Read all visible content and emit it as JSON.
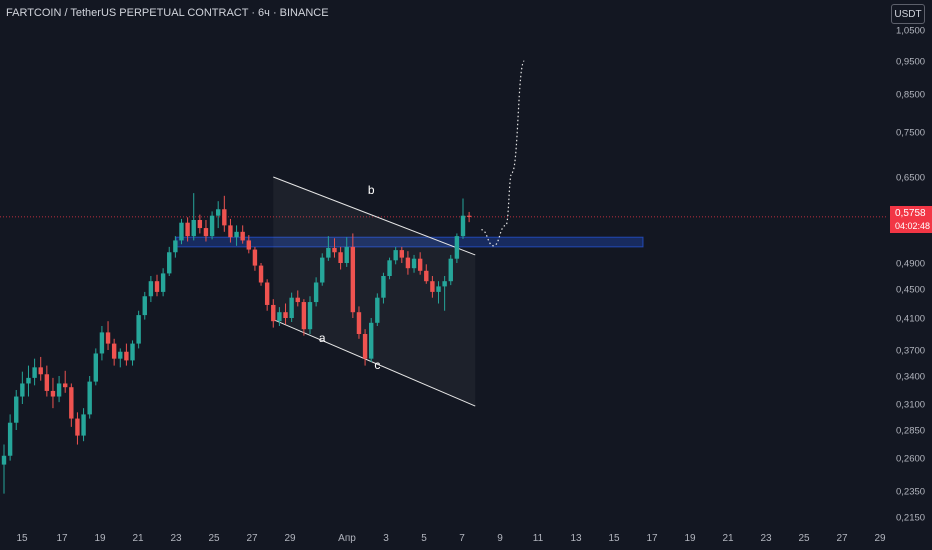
{
  "header": {
    "symbol_title": "FARTCOIN / TetherUS PERPETUAL CONTRACT · 6ч · BINANCE",
    "currency_button": "USDT"
  },
  "price_badge": {
    "price": "0,5758",
    "countdown": "04:02:48"
  },
  "colors": {
    "background": "#131722",
    "up": "#26a69a",
    "down": "#ef5350",
    "zone": "#2962ff",
    "last_price": "#f23645"
  },
  "price_axis": {
    "ticks": [
      "1,0500",
      "0,9500",
      "0,8500",
      "0,7500",
      "0,6500",
      "0,4900",
      "0,4500",
      "0,4100",
      "0,3700",
      "0,3400",
      "0,3100",
      "0,2850",
      "0,2600",
      "0,2350",
      "0,2150"
    ]
  },
  "time_axis": {
    "ticks": [
      "15",
      "17",
      "19",
      "21",
      "23",
      "25",
      "27",
      "29",
      "Апр",
      "3",
      "5",
      "7",
      "9",
      "11",
      "13",
      "15",
      "17",
      "19",
      "21",
      "23",
      "25",
      "27",
      "29"
    ]
  },
  "annotations": {
    "wave_a": "a",
    "wave_b": "b",
    "wave_c": "c"
  },
  "chart_data": {
    "type": "candlestick",
    "symbol": "FARTCOIN/USDT",
    "timeframe": "6ч",
    "last_price": 0.5758,
    "candles": [
      {
        "o": 0.255,
        "h": 0.272,
        "l": 0.233,
        "c": 0.262
      },
      {
        "o": 0.262,
        "h": 0.3,
        "l": 0.258,
        "c": 0.292
      },
      {
        "o": 0.292,
        "h": 0.325,
        "l": 0.285,
        "c": 0.318
      },
      {
        "o": 0.318,
        "h": 0.345,
        "l": 0.31,
        "c": 0.332
      },
      {
        "o": 0.332,
        "h": 0.352,
        "l": 0.318,
        "c": 0.338
      },
      {
        "o": 0.338,
        "h": 0.36,
        "l": 0.33,
        "c": 0.35
      },
      {
        "o": 0.35,
        "h": 0.362,
        "l": 0.335,
        "c": 0.342
      },
      {
        "o": 0.342,
        "h": 0.352,
        "l": 0.318,
        "c": 0.324
      },
      {
        "o": 0.324,
        "h": 0.338,
        "l": 0.306,
        "c": 0.318
      },
      {
        "o": 0.318,
        "h": 0.34,
        "l": 0.312,
        "c": 0.332
      },
      {
        "o": 0.332,
        "h": 0.346,
        "l": 0.322,
        "c": 0.328
      },
      {
        "o": 0.328,
        "h": 0.332,
        "l": 0.288,
        "c": 0.296
      },
      {
        "o": 0.296,
        "h": 0.302,
        "l": 0.272,
        "c": 0.28
      },
      {
        "o": 0.28,
        "h": 0.306,
        "l": 0.275,
        "c": 0.3
      },
      {
        "o": 0.3,
        "h": 0.34,
        "l": 0.296,
        "c": 0.334
      },
      {
        "o": 0.334,
        "h": 0.372,
        "l": 0.33,
        "c": 0.366
      },
      {
        "o": 0.366,
        "h": 0.4,
        "l": 0.358,
        "c": 0.392
      },
      {
        "o": 0.392,
        "h": 0.406,
        "l": 0.37,
        "c": 0.378
      },
      {
        "o": 0.378,
        "h": 0.384,
        "l": 0.352,
        "c": 0.36
      },
      {
        "o": 0.36,
        "h": 0.372,
        "l": 0.35,
        "c": 0.368
      },
      {
        "o": 0.368,
        "h": 0.378,
        "l": 0.352,
        "c": 0.358
      },
      {
        "o": 0.358,
        "h": 0.382,
        "l": 0.352,
        "c": 0.378
      },
      {
        "o": 0.378,
        "h": 0.42,
        "l": 0.372,
        "c": 0.414
      },
      {
        "o": 0.414,
        "h": 0.446,
        "l": 0.408,
        "c": 0.44
      },
      {
        "o": 0.44,
        "h": 0.47,
        "l": 0.432,
        "c": 0.462
      },
      {
        "o": 0.462,
        "h": 0.472,
        "l": 0.44,
        "c": 0.446
      },
      {
        "o": 0.446,
        "h": 0.482,
        "l": 0.44,
        "c": 0.474
      },
      {
        "o": 0.474,
        "h": 0.52,
        "l": 0.47,
        "c": 0.51
      },
      {
        "o": 0.51,
        "h": 0.54,
        "l": 0.5,
        "c": 0.532
      },
      {
        "o": 0.532,
        "h": 0.572,
        "l": 0.525,
        "c": 0.565
      },
      {
        "o": 0.565,
        "h": 0.575,
        "l": 0.53,
        "c": 0.54
      },
      {
        "o": 0.54,
        "h": 0.62,
        "l": 0.532,
        "c": 0.57
      },
      {
        "o": 0.57,
        "h": 0.58,
        "l": 0.545,
        "c": 0.555
      },
      {
        "o": 0.555,
        "h": 0.57,
        "l": 0.53,
        "c": 0.54
      },
      {
        "o": 0.54,
        "h": 0.586,
        "l": 0.534,
        "c": 0.578
      },
      {
        "o": 0.578,
        "h": 0.605,
        "l": 0.555,
        "c": 0.59
      },
      {
        "o": 0.59,
        "h": 0.615,
        "l": 0.548,
        "c": 0.56
      },
      {
        "o": 0.56,
        "h": 0.572,
        "l": 0.528,
        "c": 0.538
      },
      {
        "o": 0.538,
        "h": 0.56,
        "l": 0.522,
        "c": 0.548
      },
      {
        "o": 0.548,
        "h": 0.56,
        "l": 0.526,
        "c": 0.532
      },
      {
        "o": 0.532,
        "h": 0.542,
        "l": 0.508,
        "c": 0.515
      },
      {
        "o": 0.515,
        "h": 0.52,
        "l": 0.478,
        "c": 0.486
      },
      {
        "o": 0.486,
        "h": 0.49,
        "l": 0.455,
        "c": 0.46
      },
      {
        "o": 0.46,
        "h": 0.465,
        "l": 0.42,
        "c": 0.428
      },
      {
        "o": 0.428,
        "h": 0.436,
        "l": 0.398,
        "c": 0.406
      },
      {
        "o": 0.406,
        "h": 0.425,
        "l": 0.4,
        "c": 0.418
      },
      {
        "o": 0.418,
        "h": 0.43,
        "l": 0.402,
        "c": 0.41
      },
      {
        "o": 0.41,
        "h": 0.445,
        "l": 0.405,
        "c": 0.438
      },
      {
        "o": 0.438,
        "h": 0.448,
        "l": 0.426,
        "c": 0.432
      },
      {
        "o": 0.432,
        "h": 0.436,
        "l": 0.388,
        "c": 0.396
      },
      {
        "o": 0.396,
        "h": 0.44,
        "l": 0.39,
        "c": 0.432
      },
      {
        "o": 0.432,
        "h": 0.468,
        "l": 0.426,
        "c": 0.46
      },
      {
        "o": 0.46,
        "h": 0.508,
        "l": 0.455,
        "c": 0.5
      },
      {
        "o": 0.5,
        "h": 0.54,
        "l": 0.494,
        "c": 0.518
      },
      {
        "o": 0.518,
        "h": 0.536,
        "l": 0.5,
        "c": 0.51
      },
      {
        "o": 0.51,
        "h": 0.52,
        "l": 0.48,
        "c": 0.49
      },
      {
        "o": 0.49,
        "h": 0.538,
        "l": 0.484,
        "c": 0.52
      },
      {
        "o": 0.52,
        "h": 0.545,
        "l": 0.41,
        "c": 0.418
      },
      {
        "o": 0.418,
        "h": 0.426,
        "l": 0.384,
        "c": 0.39
      },
      {
        "o": 0.39,
        "h": 0.396,
        "l": 0.352,
        "c": 0.36
      },
      {
        "o": 0.36,
        "h": 0.41,
        "l": 0.356,
        "c": 0.404
      },
      {
        "o": 0.404,
        "h": 0.444,
        "l": 0.4,
        "c": 0.438
      },
      {
        "o": 0.438,
        "h": 0.475,
        "l": 0.43,
        "c": 0.47
      },
      {
        "o": 0.47,
        "h": 0.5,
        "l": 0.465,
        "c": 0.495
      },
      {
        "o": 0.495,
        "h": 0.52,
        "l": 0.488,
        "c": 0.514
      },
      {
        "o": 0.514,
        "h": 0.52,
        "l": 0.49,
        "c": 0.5
      },
      {
        "o": 0.5,
        "h": 0.512,
        "l": 0.472,
        "c": 0.482
      },
      {
        "o": 0.482,
        "h": 0.505,
        "l": 0.475,
        "c": 0.498
      },
      {
        "o": 0.498,
        "h": 0.51,
        "l": 0.472,
        "c": 0.478
      },
      {
        "o": 0.478,
        "h": 0.488,
        "l": 0.458,
        "c": 0.462
      },
      {
        "o": 0.462,
        "h": 0.47,
        "l": 0.438,
        "c": 0.446
      },
      {
        "o": 0.446,
        "h": 0.462,
        "l": 0.43,
        "c": 0.454
      },
      {
        "o": 0.454,
        "h": 0.47,
        "l": 0.42,
        "c": 0.462
      },
      {
        "o": 0.462,
        "h": 0.505,
        "l": 0.456,
        "c": 0.498
      },
      {
        "o": 0.498,
        "h": 0.545,
        "l": 0.49,
        "c": 0.54
      },
      {
        "o": 0.54,
        "h": 0.61,
        "l": 0.535,
        "c": 0.578
      },
      {
        "o": 0.578,
        "h": 0.585,
        "l": 0.566,
        "c": 0.5758
      }
    ],
    "zone": {
      "low": 0.52,
      "high": 0.538
    },
    "channel": {
      "upper": [
        {
          "bar": 44,
          "y": 0.65
        },
        {
          "bar": 77,
          "y": 0.505
        }
      ],
      "lower": [
        {
          "bar": 44,
          "y": 0.408
        },
        {
          "bar": 77,
          "y": 0.308
        }
      ]
    },
    "projection": [
      {
        "bar": 78,
        "y": 0.552
      },
      {
        "bar": 80,
        "y": 0.522
      },
      {
        "bar": 82,
        "y": 0.56
      },
      {
        "bar": 83,
        "y": 0.66
      },
      {
        "bar": 85,
        "y": 0.95
      }
    ],
    "wave_points": {
      "a": {
        "bar": 52,
        "y": 0.38
      },
      "b": {
        "bar": 60,
        "y": 0.618
      },
      "c": {
        "bar": 61,
        "y": 0.348
      }
    }
  }
}
